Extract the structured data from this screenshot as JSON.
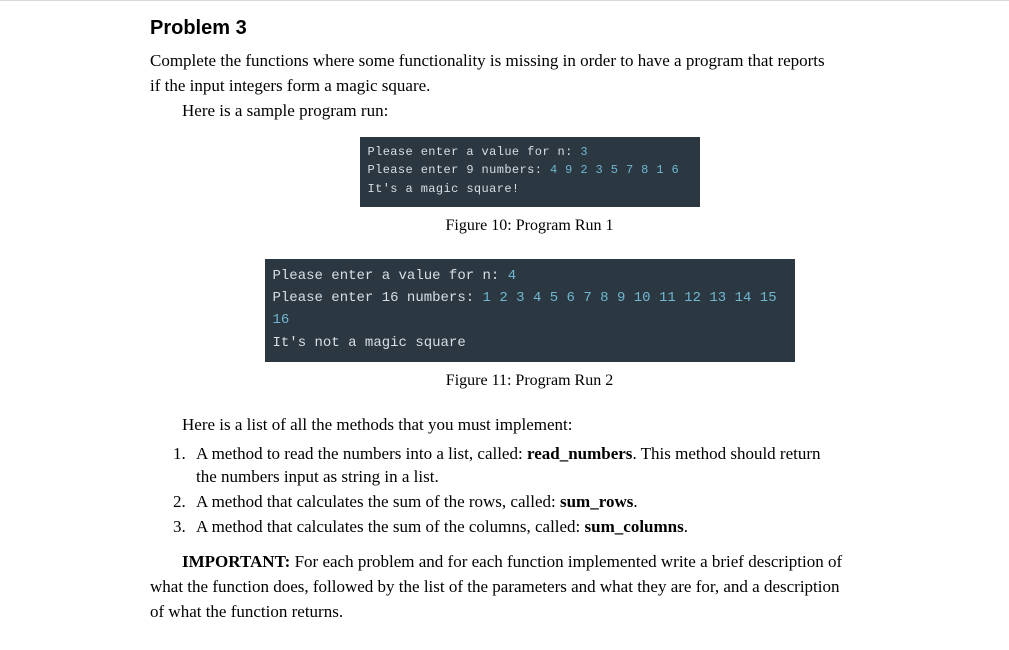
{
  "heading": "Problem 3",
  "intro_line1": "Complete the functions where some functionality is missing in order to have a program that reports",
  "intro_line2": "if the input integers form a magic square.",
  "intro_line3": "Here is a sample program run:",
  "terminal1": {
    "bg": "#2b3841",
    "fg": "#d8dee4",
    "num_color": "#6fb7d1",
    "l1a": "Please enter a value for n: ",
    "l1b": "3",
    "l2a": "Please enter 9 numbers: ",
    "l2b": "4 9 2 3 5 7 8 1 6",
    "l3": "It's a magic square!"
  },
  "fig1_caption": "Figure 10: Program Run 1",
  "terminal2": {
    "bg": "#2b3841",
    "fg": "#d8dee4",
    "num_color": "#6fb7d1",
    "l1a": "Please enter a value for n: ",
    "l1b": "4",
    "l2a": "Please enter 16 numbers: ",
    "l2b": "1 2 3 4 5 6 7 8 9 10 11 12 13 14 15 16",
    "l3": "It's not a magic square"
  },
  "fig2_caption": "Figure 11: Program Run 2",
  "methods_intro": "Here is a list of all the methods that you must implement:",
  "m1_a": "A method to read the numbers into a list, called: ",
  "m1_b": "read_numbers",
  "m1_c": ". This method should return",
  "m1_d": "the numbers input as string in a list.",
  "m2_a": "A method that calculates the sum of the rows, called: ",
  "m2_b": "sum_rows",
  "m2_c": ".",
  "m3_a": "A method that calculates the sum of the columns, called: ",
  "m3_b": "sum_columns",
  "m3_c": ".",
  "important_label": "IMPORTANT:",
  "important_tail1": " For each problem and for each function implemented write a brief description of",
  "important_line2": "what the function does, followed by the list of the parameters and what they are for, and a description",
  "important_line3": "of what the function returns."
}
